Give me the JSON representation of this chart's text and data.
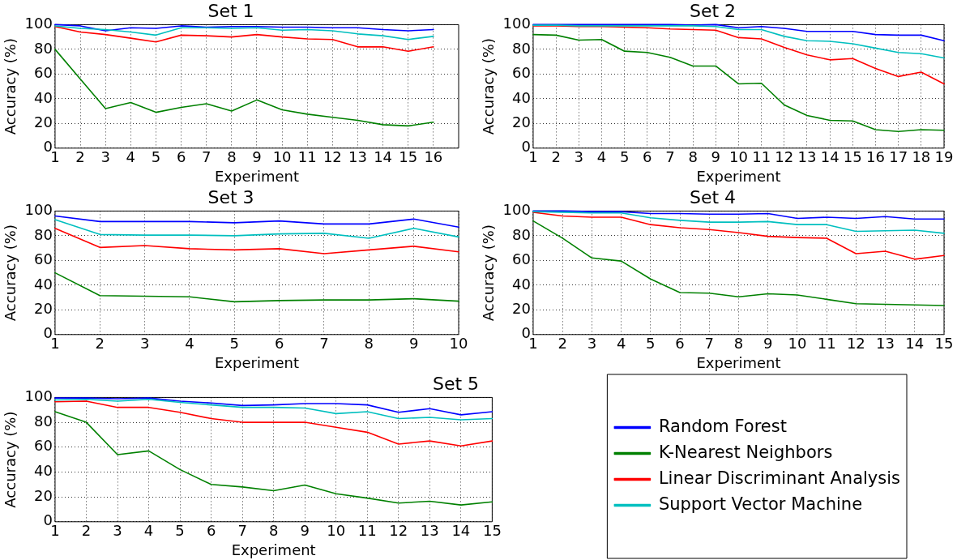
{
  "chart_data": [
    {
      "type": "line",
      "title": "Set 1",
      "xlabel": "Experiment",
      "ylabel": "Accuracy (%)",
      "x": [
        1,
        2,
        3,
        4,
        5,
        6,
        7,
        8,
        9,
        10,
        11,
        12,
        13,
        14,
        15,
        16
      ],
      "xlim": [
        1,
        17
      ],
      "xticks": [
        1,
        2,
        3,
        4,
        5,
        6,
        7,
        8,
        9,
        10,
        11,
        12,
        13,
        14,
        15,
        16
      ],
      "ylim": [
        0,
        100
      ],
      "yticks": [
        0,
        20,
        40,
        60,
        80,
        100
      ],
      "grid": true,
      "series": [
        {
          "color": "#0000ff",
          "values": [
            100,
            99,
            95,
            97.5,
            97,
            99,
            98,
            98.5,
            98.5,
            98,
            98,
            97.5,
            97.5,
            96,
            95,
            96
          ]
        },
        {
          "color": "#008000",
          "values": [
            80,
            56,
            32,
            37,
            29,
            33,
            36,
            30,
            39,
            31,
            27.5,
            25,
            22.5,
            19,
            18,
            21
          ]
        },
        {
          "color": "#ff0000",
          "values": [
            98.5,
            94,
            92,
            89,
            86,
            91.5,
            91,
            90,
            92,
            90,
            88.5,
            88,
            82,
            82,
            78.5,
            82
          ]
        },
        {
          "color": "#00bfbf",
          "values": [
            99,
            97,
            96,
            94,
            91.5,
            97.5,
            97.5,
            97,
            97.5,
            95.5,
            96,
            95,
            92.5,
            91,
            88,
            90.5
          ]
        }
      ]
    },
    {
      "type": "line",
      "title": "Set 2",
      "xlabel": "Experiment",
      "ylabel": "Accuracy (%)",
      "x": [
        1,
        2,
        3,
        4,
        5,
        6,
        7,
        8,
        9,
        10,
        11,
        12,
        13,
        14,
        15,
        16,
        17,
        18,
        19
      ],
      "xlim": [
        1,
        19
      ],
      "xticks": [
        1,
        2,
        3,
        4,
        5,
        6,
        7,
        8,
        9,
        10,
        11,
        12,
        13,
        14,
        15,
        16,
        17,
        18,
        19
      ],
      "ylim": [
        0,
        100
      ],
      "yticks": [
        0,
        20,
        40,
        60,
        80,
        100
      ],
      "grid": true,
      "series": [
        {
          "color": "#0000ff",
          "values": [
            100,
            100,
            100,
            100,
            100,
            100,
            100,
            99.5,
            100,
            97.5,
            98.5,
            97,
            94.5,
            94.5,
            94.5,
            92,
            91.5,
            91.5,
            87
          ]
        },
        {
          "color": "#008000",
          "values": [
            92,
            91.5,
            87.5,
            88,
            78.5,
            77.5,
            73.5,
            66.5,
            66.5,
            52,
            52.5,
            35,
            26.5,
            22.5,
            22,
            15,
            13.5,
            15,
            14.5
          ]
        },
        {
          "color": "#ff0000",
          "values": [
            99,
            99,
            98.5,
            98.5,
            98,
            97.5,
            96.5,
            96,
            95.5,
            89.5,
            88.5,
            81.5,
            75.5,
            71.5,
            72.5,
            64.5,
            58,
            61.5,
            52
          ]
        },
        {
          "color": "#00bfbf",
          "values": [
            99.5,
            99.5,
            99,
            99,
            99,
            99,
            99,
            99,
            98.5,
            96,
            96,
            90.5,
            87,
            86.5,
            84.5,
            81,
            77.5,
            76.5,
            73
          ]
        }
      ]
    },
    {
      "type": "line",
      "title": "Set 3",
      "xlabel": "Experiment",
      "ylabel": "Accuracy (%)",
      "x": [
        1,
        2,
        3,
        4,
        5,
        6,
        7,
        8,
        9,
        10
      ],
      "xlim": [
        1,
        10
      ],
      "xticks": [
        1,
        2,
        3,
        4,
        5,
        6,
        7,
        8,
        9,
        10
      ],
      "ylim": [
        0,
        100
      ],
      "yticks": [
        0,
        20,
        40,
        60,
        80,
        100
      ],
      "grid": true,
      "series": [
        {
          "color": "#0000ff",
          "values": [
            96,
            91.5,
            91.5,
            91.5,
            90.5,
            92,
            89.5,
            89.5,
            93.5,
            87
          ]
        },
        {
          "color": "#008000",
          "values": [
            50,
            31.5,
            31,
            30.5,
            26.5,
            27.5,
            28,
            28,
            29,
            27
          ]
        },
        {
          "color": "#ff0000",
          "values": [
            86,
            70.5,
            72,
            69.5,
            68.5,
            69.5,
            65.5,
            68.5,
            71.5,
            67
          ]
        },
        {
          "color": "#00bfbf",
          "values": [
            93,
            81,
            80.5,
            80.5,
            80,
            81.5,
            82,
            78,
            86,
            79
          ]
        }
      ]
    },
    {
      "type": "line",
      "title": "Set 4",
      "xlabel": "Experiment",
      "ylabel": "Accuracy (%)",
      "x": [
        1,
        2,
        3,
        4,
        5,
        6,
        7,
        8,
        9,
        10,
        11,
        12,
        13,
        14,
        15
      ],
      "xlim": [
        1,
        15
      ],
      "xticks": [
        1,
        2,
        3,
        4,
        5,
        6,
        7,
        8,
        9,
        10,
        11,
        12,
        13,
        14,
        15
      ],
      "ylim": [
        0,
        100
      ],
      "yticks": [
        0,
        20,
        40,
        60,
        80,
        100
      ],
      "grid": true,
      "series": [
        {
          "color": "#0000ff",
          "values": [
            100,
            100,
            99.5,
            99.5,
            98,
            98,
            97.5,
            97.5,
            98,
            94,
            95,
            94,
            95.5,
            93.5,
            93.5
          ]
        },
        {
          "color": "#008000",
          "values": [
            92,
            78,
            62,
            59.5,
            45,
            34,
            33.5,
            30.5,
            33,
            32,
            28.5,
            25,
            24.5,
            24,
            23.5
          ]
        },
        {
          "color": "#ff0000",
          "values": [
            99,
            96,
            95,
            95,
            89,
            86.5,
            85,
            82.5,
            79.5,
            78.5,
            78,
            65.5,
            67.5,
            61,
            64
          ]
        },
        {
          "color": "#00bfbf",
          "values": [
            99.5,
            99,
            98.5,
            98.5,
            94.5,
            92.5,
            91,
            91,
            91.5,
            89,
            89,
            83.5,
            84,
            84.5,
            82
          ]
        }
      ]
    },
    {
      "type": "line",
      "title": "Set 5",
      "xlabel": "Experiment",
      "ylabel": "Accuracy (%)",
      "x": [
        1,
        2,
        3,
        4,
        5,
        6,
        7,
        8,
        9,
        10,
        11,
        12,
        13,
        14,
        15
      ],
      "xlim": [
        1,
        15
      ],
      "xticks": [
        1,
        2,
        3,
        4,
        5,
        6,
        7,
        8,
        9,
        10,
        11,
        12,
        13,
        14,
        15
      ],
      "ylim": [
        0,
        100
      ],
      "yticks": [
        0,
        20,
        40,
        60,
        80,
        100
      ],
      "grid": true,
      "legend": "right",
      "series": [
        {
          "name": "Random Forest",
          "color": "#0000ff",
          "values": [
            99.5,
            99.5,
            99,
            99.5,
            97,
            95.5,
            93.5,
            94,
            95,
            95,
            94,
            88,
            91,
            86,
            88.5
          ]
        },
        {
          "name": "K-Nearest Neighbors",
          "color": "#008000",
          "values": [
            88.5,
            80,
            54,
            57,
            42,
            30,
            28,
            25,
            29.5,
            22.5,
            19,
            15,
            16.5,
            13.5,
            16
          ]
        },
        {
          "name": "Linear Discriminant Analysis",
          "color": "#ff0000",
          "values": [
            96.5,
            97,
            92,
            92,
            88,
            83,
            80,
            80,
            80,
            76,
            72,
            62.5,
            65,
            61,
            65
          ]
        },
        {
          "name": "Support Vector Machine",
          "color": "#00bfbf",
          "values": [
            98,
            98.5,
            97,
            98.5,
            96,
            94,
            92,
            92,
            91.5,
            87,
            88.5,
            83,
            84,
            82,
            83
          ]
        }
      ]
    }
  ]
}
